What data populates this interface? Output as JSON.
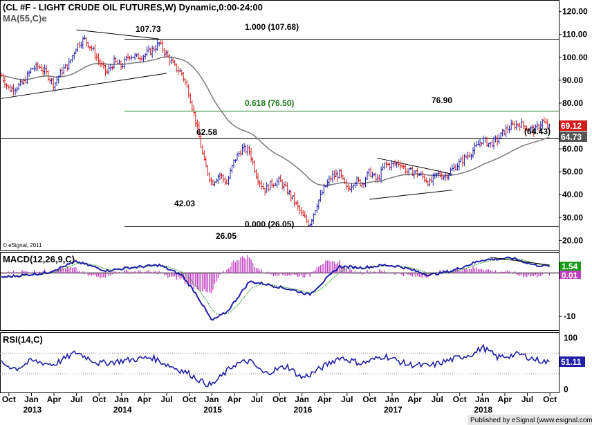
{
  "title": "(CL #F - LIGHT CRUDE OIL FUTURES,W) Dynamic,0:00-24:00",
  "ma_label": "MA(55,C)e",
  "copyright": "© eSignal, 2011",
  "footer": "Published by eSignal (www.esignal.com)",
  "colors": {
    "up_bar": "#1e1ea8",
    "down_bar": "#d41a1a",
    "ma": "#808080",
    "fib_line": "#1a7a1a",
    "macd_line": "#1e1ea8",
    "signal_line": "#2aa02a",
    "histogram": "#c040c0",
    "rsi_line": "#1e1ea8",
    "price_tag": "#d41a1a",
    "ma_tag": "#555555",
    "macd_tag": "#1a9a1a",
    "signal_tag": "#c040c0",
    "rsi_tag": "#1e1ea8"
  },
  "chart_data": [
    {
      "type": "candlestick",
      "panel": "price",
      "ylim": [
        18,
        122
      ],
      "y_ticks": [
        "120.00",
        "110.00",
        "100.00",
        "90.00",
        "80.00",
        "70.00",
        "60.00",
        "50.00",
        "40.00",
        "30.00",
        "20.00"
      ],
      "current_price": "69.12",
      "ma_value": "64.73",
      "series": [
        {
          "name": "MA(55,C)e",
          "type": "line"
        }
      ],
      "price_path": [
        [
          "2012-09",
          92
        ],
        [
          "2012-10",
          86
        ],
        [
          "2012-11",
          87
        ],
        [
          "2012-12",
          89
        ],
        [
          "2013-01",
          95
        ],
        [
          "2013-02",
          96
        ],
        [
          "2013-03",
          93
        ],
        [
          "2013-04",
          88
        ],
        [
          "2013-05",
          94
        ],
        [
          "2013-06",
          97
        ],
        [
          "2013-07",
          105
        ],
        [
          "2013-08",
          108
        ],
        [
          "2013-09",
          104
        ],
        [
          "2013-10",
          98
        ],
        [
          "2013-11",
          93
        ],
        [
          "2013-12",
          98
        ],
        [
          "2014-01",
          96
        ],
        [
          "2014-02",
          101
        ],
        [
          "2014-03",
          100
        ],
        [
          "2014-04",
          101
        ],
        [
          "2014-05",
          103
        ],
        [
          "2014-06",
          106
        ],
        [
          "2014-07",
          101
        ],
        [
          "2014-08",
          96
        ],
        [
          "2014-09",
          93
        ],
        [
          "2014-10",
          84
        ],
        [
          "2014-11",
          70
        ],
        [
          "2014-12",
          54
        ],
        [
          "2015-01",
          45
        ],
        [
          "2015-02",
          49
        ],
        [
          "2015-03",
          45
        ],
        [
          "2015-04",
          55
        ],
        [
          "2015-05",
          60
        ],
        [
          "2015-06",
          59
        ],
        [
          "2015-07",
          48
        ],
        [
          "2015-08",
          42
        ],
        [
          "2015-09",
          45
        ],
        [
          "2015-10",
          46
        ],
        [
          "2015-11",
          42
        ],
        [
          "2015-12",
          37
        ],
        [
          "2016-01",
          31
        ],
        [
          "2016-02",
          27
        ],
        [
          "2016-03",
          36
        ],
        [
          "2016-04",
          43
        ],
        [
          "2016-05",
          48
        ],
        [
          "2016-06",
          49
        ],
        [
          "2016-07",
          42
        ],
        [
          "2016-08",
          46
        ],
        [
          "2016-09",
          45
        ],
        [
          "2016-10",
          50
        ],
        [
          "2016-11",
          46
        ],
        [
          "2016-12",
          53
        ],
        [
          "2017-01",
          53
        ],
        [
          "2017-02",
          54
        ],
        [
          "2017-03",
          50
        ],
        [
          "2017-04",
          50
        ],
        [
          "2017-05",
          48
        ],
        [
          "2017-06",
          45
        ],
        [
          "2017-07",
          49
        ],
        [
          "2017-08",
          48
        ],
        [
          "2017-09",
          51
        ],
        [
          "2017-10",
          54
        ],
        [
          "2017-11",
          57
        ],
        [
          "2017-12",
          60
        ],
        [
          "2018-01",
          64
        ],
        [
          "2018-02",
          62
        ],
        [
          "2018-03",
          64
        ],
        [
          "2018-04",
          68
        ],
        [
          "2018-05",
          70
        ],
        [
          "2018-06",
          71
        ],
        [
          "2018-07",
          69
        ],
        [
          "2018-08",
          68
        ],
        [
          "2018-09",
          72
        ],
        [
          "2018-10",
          69
        ]
      ],
      "horizontal_lines": [
        {
          "value": 107.68,
          "label": "1.000 (107.68)"
        },
        {
          "value": 76.5,
          "label": "0.618 (76.50)"
        },
        {
          "value": 64.43,
          "label": "(64.43)"
        },
        {
          "value": 26.05,
          "label": "0.000 (26.05)"
        }
      ],
      "annotations": [
        "107.73",
        "76.90",
        "62.58",
        "42.03",
        "26.05"
      ],
      "trendlines": [
        {
          "from": [
            "2013-07",
            112
          ],
          "to": [
            "2014-06",
            108
          ]
        },
        {
          "from": [
            "2012-09",
            82
          ],
          "to": [
            "2014-07",
            93
          ]
        },
        {
          "from": [
            "2016-11",
            56
          ],
          "to": [
            "2017-09",
            49
          ]
        },
        {
          "from": [
            "2016-10",
            38
          ],
          "to": [
            "2017-09",
            42
          ]
        }
      ]
    },
    {
      "type": "line",
      "panel": "macd",
      "label": "MACD(12,26,9,C)",
      "ylim": [
        -13,
        4.5
      ],
      "y_ticks": [
        "-10"
      ],
      "values": [
        "1.54",
        "0.01"
      ],
      "series": [
        {
          "name": "MACD"
        },
        {
          "name": "Signal"
        },
        {
          "name": "Histogram"
        }
      ],
      "macd_path": [
        [
          "2012-09",
          -1
        ],
        [
          "2013-03",
          0
        ],
        [
          "2013-07",
          2.6
        ],
        [
          "2013-11",
          0.5
        ],
        [
          "2014-02",
          1.2
        ],
        [
          "2014-06",
          1.8
        ],
        [
          "2014-09",
          -0.5
        ],
        [
          "2014-11",
          -5
        ],
        [
          "2015-01",
          -11
        ],
        [
          "2015-03",
          -9
        ],
        [
          "2015-06",
          -2
        ],
        [
          "2015-08",
          -2.5
        ],
        [
          "2015-12",
          -4
        ],
        [
          "2016-02",
          -5
        ],
        [
          "2016-06",
          1.5
        ],
        [
          "2016-09",
          1.2
        ],
        [
          "2016-12",
          1.8
        ],
        [
          "2017-02",
          1.5
        ],
        [
          "2017-06",
          -0.5
        ],
        [
          "2017-09",
          0.5
        ],
        [
          "2018-01",
          3
        ],
        [
          "2018-05",
          3.4
        ],
        [
          "2018-08",
          1.8
        ],
        [
          "2018-10",
          1.54
        ]
      ]
    },
    {
      "type": "line",
      "panel": "rsi",
      "label": "RSI(14,C)",
      "ylim": [
        -5,
        108
      ],
      "y_ticks": [
        "100",
        "0"
      ],
      "value": "51.11",
      "rsi_path": [
        [
          "2012-09",
          50
        ],
        [
          "2012-11",
          40
        ],
        [
          "2013-01",
          55
        ],
        [
          "2013-04",
          48
        ],
        [
          "2013-07",
          72
        ],
        [
          "2013-10",
          50
        ],
        [
          "2014-01",
          55
        ],
        [
          "2014-05",
          62
        ],
        [
          "2014-07",
          48
        ],
        [
          "2014-10",
          30
        ],
        [
          "2014-12",
          12
        ],
        [
          "2015-01",
          8
        ],
        [
          "2015-04",
          48
        ],
        [
          "2015-06",
          55
        ],
        [
          "2015-08",
          30
        ],
        [
          "2015-11",
          45
        ],
        [
          "2016-01",
          22
        ],
        [
          "2016-02",
          28
        ],
        [
          "2016-06",
          62
        ],
        [
          "2016-09",
          50
        ],
        [
          "2016-12",
          65
        ],
        [
          "2017-03",
          48
        ],
        [
          "2017-06",
          45
        ],
        [
          "2017-09",
          58
        ],
        [
          "2017-12",
          70
        ],
        [
          "2018-01",
          82
        ],
        [
          "2018-03",
          62
        ],
        [
          "2018-06",
          68
        ],
        [
          "2018-08",
          58
        ],
        [
          "2018-10",
          51.11
        ]
      ]
    }
  ],
  "x_axis": {
    "range": [
      "2012-09",
      "2018-11"
    ],
    "month_ticks": [
      {
        "date": "2012-10",
        "label": "Oct"
      },
      {
        "date": "2013-01",
        "label": "Jan"
      },
      {
        "date": "2013-04",
        "label": "Apr"
      },
      {
        "date": "2013-07",
        "label": "Jul"
      },
      {
        "date": "2013-10",
        "label": "Oct"
      },
      {
        "date": "2014-01",
        "label": "Jan"
      },
      {
        "date": "2014-04",
        "label": "Apr"
      },
      {
        "date": "2014-07",
        "label": "Jul"
      },
      {
        "date": "2014-10",
        "label": "Oct"
      },
      {
        "date": "2015-01",
        "label": "Jan"
      },
      {
        "date": "2015-04",
        "label": "Apr"
      },
      {
        "date": "2015-07",
        "label": "Jul"
      },
      {
        "date": "2015-10",
        "label": "Oct"
      },
      {
        "date": "2016-01",
        "label": "Jan"
      },
      {
        "date": "2016-04",
        "label": "Apr"
      },
      {
        "date": "2016-07",
        "label": "Jul"
      },
      {
        "date": "2016-10",
        "label": "Oct"
      },
      {
        "date": "2017-01",
        "label": "Jan"
      },
      {
        "date": "2017-04",
        "label": "Apr"
      },
      {
        "date": "2017-07",
        "label": "Jul"
      },
      {
        "date": "2017-10",
        "label": "Oct"
      },
      {
        "date": "2018-01",
        "label": "Jan"
      },
      {
        "date": "2018-04",
        "label": "Apr"
      },
      {
        "date": "2018-07",
        "label": "Jul"
      },
      {
        "date": "2018-10",
        "label": "Oct"
      }
    ],
    "years": [
      {
        "date": "2013-01",
        "label": "2013"
      },
      {
        "date": "2014-01",
        "label": "2014"
      },
      {
        "date": "2015-01",
        "label": "2015"
      },
      {
        "date": "2016-01",
        "label": "2016"
      },
      {
        "date": "2017-01",
        "label": "2017"
      },
      {
        "date": "2018-01",
        "label": "2018"
      }
    ]
  }
}
